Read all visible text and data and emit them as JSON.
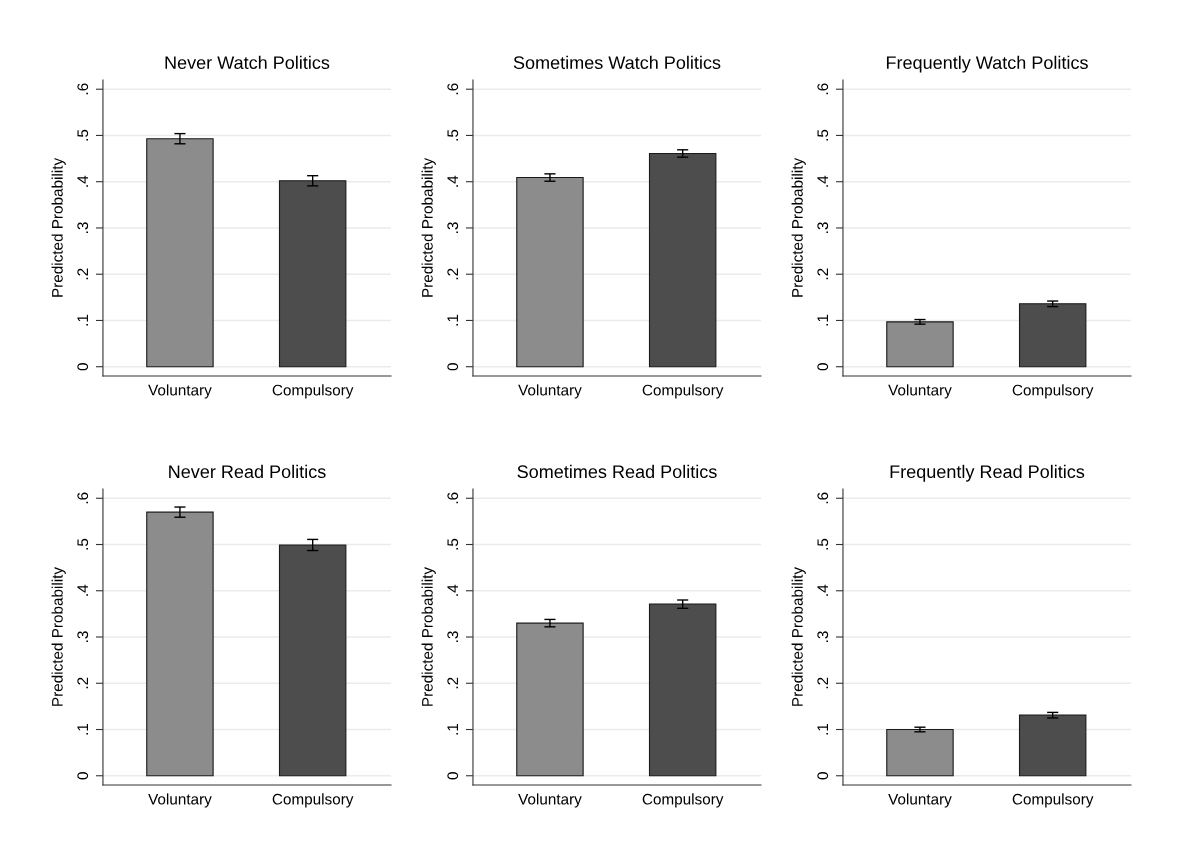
{
  "chart_data": [
    {
      "type": "bar",
      "title": "Never Watch Politics",
      "ylabel": "Predicted Probability",
      "categories": [
        "Voluntary",
        "Compulsory"
      ],
      "values": [
        0.493,
        0.402
      ],
      "errors": [
        0.011,
        0.011
      ],
      "colors": [
        "#8c8c8c",
        "#4d4d4d"
      ],
      "ylim": [
        -0.02,
        0.62
      ],
      "yticks": [
        0,
        {
          "value": 0.1,
          "label": ".1"
        },
        {
          "value": 0.2,
          "label": ".2"
        },
        {
          "value": 0.3,
          "label": ".3"
        },
        {
          "value": 0.4,
          "label": ".4"
        },
        {
          "value": 0.5,
          "label": ".5"
        },
        {
          "value": 0.6,
          "label": ".6"
        }
      ],
      "grid": "y"
    },
    {
      "type": "bar",
      "title": "Sometimes Watch Politics",
      "ylabel": "Predicted Probability",
      "categories": [
        "Voluntary",
        "Compulsory"
      ],
      "values": [
        0.409,
        0.461
      ],
      "errors": [
        0.008,
        0.008
      ],
      "colors": [
        "#8c8c8c",
        "#4d4d4d"
      ],
      "ylim": [
        -0.02,
        0.62
      ],
      "yticks": [
        0,
        {
          "value": 0.1,
          "label": ".1"
        },
        {
          "value": 0.2,
          "label": ".2"
        },
        {
          "value": 0.3,
          "label": ".3"
        },
        {
          "value": 0.4,
          "label": ".4"
        },
        {
          "value": 0.5,
          "label": ".5"
        },
        {
          "value": 0.6,
          "label": ".6"
        }
      ],
      "grid": "y"
    },
    {
      "type": "bar",
      "title": "Frequently Watch Politics",
      "ylabel": "Predicted Probability",
      "categories": [
        "Voluntary",
        "Compulsory"
      ],
      "values": [
        0.097,
        0.136
      ],
      "errors": [
        0.005,
        0.006
      ],
      "colors": [
        "#8c8c8c",
        "#4d4d4d"
      ],
      "ylim": [
        -0.02,
        0.62
      ],
      "yticks": [
        0,
        {
          "value": 0.1,
          "label": ".1"
        },
        {
          "value": 0.2,
          "label": ".2"
        },
        {
          "value": 0.3,
          "label": ".3"
        },
        {
          "value": 0.4,
          "label": ".4"
        },
        {
          "value": 0.5,
          "label": ".5"
        },
        {
          "value": 0.6,
          "label": ".6"
        }
      ],
      "grid": "y"
    },
    {
      "type": "bar",
      "title": "Never Read Politics",
      "ylabel": "Predicted Probability",
      "categories": [
        "Voluntary",
        "Compulsory"
      ],
      "values": [
        0.57,
        0.499
      ],
      "errors": [
        0.011,
        0.012
      ],
      "colors": [
        "#8c8c8c",
        "#4d4d4d"
      ],
      "ylim": [
        -0.02,
        0.62
      ],
      "yticks": [
        0,
        {
          "value": 0.1,
          "label": ".1"
        },
        {
          "value": 0.2,
          "label": ".2"
        },
        {
          "value": 0.3,
          "label": ".3"
        },
        {
          "value": 0.4,
          "label": ".4"
        },
        {
          "value": 0.5,
          "label": ".5"
        },
        {
          "value": 0.6,
          "label": ".6"
        }
      ],
      "grid": "y"
    },
    {
      "type": "bar",
      "title": "Sometimes Read Politics",
      "ylabel": "Predicted Probability",
      "categories": [
        "Voluntary",
        "Compulsory"
      ],
      "values": [
        0.33,
        0.371
      ],
      "errors": [
        0.008,
        0.009
      ],
      "colors": [
        "#8c8c8c",
        "#4d4d4d"
      ],
      "ylim": [
        -0.02,
        0.62
      ],
      "yticks": [
        0,
        {
          "value": 0.1,
          "label": ".1"
        },
        {
          "value": 0.2,
          "label": ".2"
        },
        {
          "value": 0.3,
          "label": ".3"
        },
        {
          "value": 0.4,
          "label": ".4"
        },
        {
          "value": 0.5,
          "label": ".5"
        },
        {
          "value": 0.6,
          "label": ".6"
        }
      ],
      "grid": "y"
    },
    {
      "type": "bar",
      "title": "Frequently Read Politics",
      "ylabel": "Predicted Probability",
      "categories": [
        "Voluntary",
        "Compulsory"
      ],
      "values": [
        0.1,
        0.131
      ],
      "errors": [
        0.005,
        0.006
      ],
      "colors": [
        "#8c8c8c",
        "#4d4d4d"
      ],
      "ylim": [
        -0.02,
        0.62
      ],
      "yticks": [
        0,
        {
          "value": 0.1,
          "label": ".1"
        },
        {
          "value": 0.2,
          "label": ".2"
        },
        {
          "value": 0.3,
          "label": ".3"
        },
        {
          "value": 0.4,
          "label": ".4"
        },
        {
          "value": 0.5,
          "label": ".5"
        },
        {
          "value": 0.6,
          "label": ".6"
        }
      ],
      "grid": "y"
    }
  ]
}
